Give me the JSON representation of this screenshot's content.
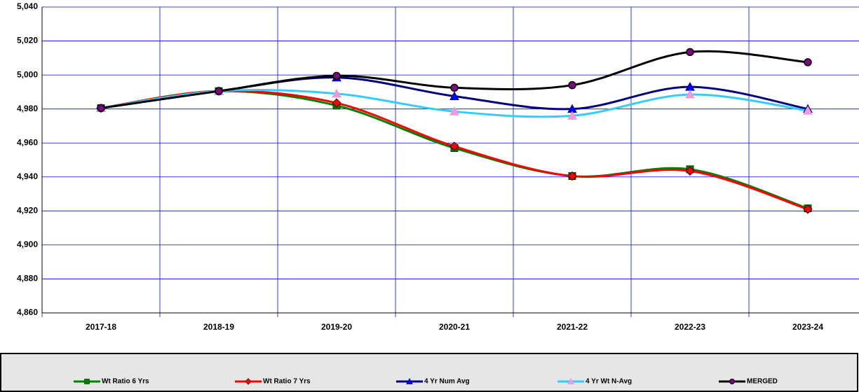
{
  "chart_data": {
    "type": "line",
    "categories": [
      "2017-18",
      "2018-19",
      "2019-20",
      "2020-21",
      "2021-22",
      "2022-23",
      "2023-24"
    ],
    "series": [
      {
        "name": "Wt Ratio 6 Yrs",
        "color": "#008000",
        "marker": "square",
        "values": [
          4980.5,
          4990.5,
          4982,
          4957,
          4940.5,
          4944.5,
          4921.5
        ]
      },
      {
        "name": "Wt Ratio 7 Yrs",
        "color": "#ff0000",
        "marker": "diamond",
        "values": [
          4980.5,
          4990.5,
          4983.5,
          4958,
          4940.5,
          4943.5,
          4921
        ]
      },
      {
        "name": "4 Yr Num Avg",
        "color": "#000080",
        "marker": "triangle",
        "values": [
          4980.5,
          4990.5,
          4998.5,
          4987.5,
          4980,
          4993,
          4980
        ]
      },
      {
        "name": "4 Yr Wt N-Avg",
        "color": "#33ccff",
        "marker": "triangle-pink",
        "values": [
          4980.5,
          4990.5,
          4989,
          4978.5,
          4976,
          4988.5,
          4979
        ]
      },
      {
        "name": "MERGED",
        "color": "#000000",
        "marker": "circle",
        "values": [
          4980.5,
          4990.5,
          4999.5,
          4992.5,
          4994,
          5013.5,
          5007.5
        ]
      }
    ],
    "ylim": [
      4860,
      5040
    ],
    "yticks": [
      {
        "value": 4860,
        "label": "4,860"
      },
      {
        "value": 4880,
        "label": "4,880"
      },
      {
        "value": 4900,
        "label": "4,900"
      },
      {
        "value": 4920,
        "label": "4,920"
      },
      {
        "value": 4940,
        "label": "4,940"
      },
      {
        "value": 4960,
        "label": "4,960"
      },
      {
        "value": 4980,
        "label": "4,980"
      },
      {
        "value": 5000,
        "label": "5,000"
      },
      {
        "value": 5020,
        "label": "5,020"
      },
      {
        "value": 5040,
        "label": "5,040"
      }
    ],
    "grid": true,
    "grid_color": "#0000ff",
    "legend": "bottom"
  }
}
